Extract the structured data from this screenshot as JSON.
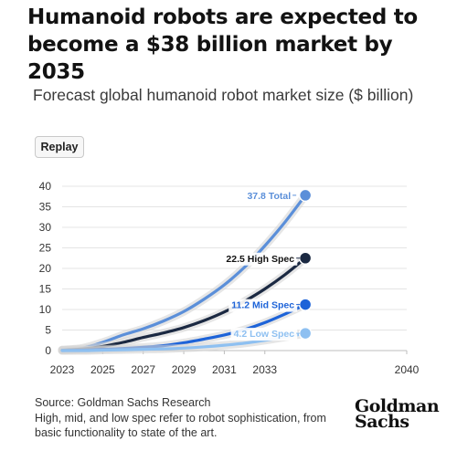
{
  "header": {
    "title": "Humanoid robots are expected to become a $38 billion market by 2035",
    "subtitle": "Forecast global humanoid robot market size ($ billion)"
  },
  "controls": {
    "replay_label": "Replay"
  },
  "footer": {
    "source": "Source: Goldman Sachs Research",
    "note": "High, mid, and low spec refer to robot sophistication, from basic functionality to state of the art.",
    "logo_line1": "Goldman",
    "logo_line2": "Sachs"
  },
  "chart_data": {
    "type": "line",
    "title": "Forecast global humanoid robot market size ($ billion)",
    "xlabel": "",
    "ylabel": "",
    "xlim": [
      2023,
      2040
    ],
    "ylim": [
      0,
      40
    ],
    "x_ticks": [
      2023,
      2025,
      2027,
      2029,
      2031,
      2033,
      2040
    ],
    "y_ticks": [
      0,
      5,
      10,
      15,
      20,
      25,
      30,
      35,
      40
    ],
    "grid": "horizontal",
    "legend": "end-of-line labels",
    "series": [
      {
        "name": "Total",
        "color": "#5b8fd9",
        "label": "37.8 Total",
        "x": [
          2023,
          2024,
          2025,
          2026,
          2027,
          2028,
          2029,
          2030,
          2031,
          2032,
          2033,
          2034,
          2035
        ],
        "values": [
          0.2,
          0.6,
          2.0,
          3.8,
          5.3,
          7.2,
          9.5,
          12.5,
          16.0,
          20.3,
          25.5,
          31.3,
          37.8
        ]
      },
      {
        "name": "High Spec",
        "color": "#1b2942",
        "label": "22.5 High Spec",
        "x": [
          2023,
          2024,
          2025,
          2026,
          2027,
          2028,
          2029,
          2030,
          2031,
          2032,
          2033,
          2034,
          2035
        ],
        "values": [
          0.1,
          0.4,
          1.0,
          2.0,
          3.2,
          4.3,
          5.6,
          7.3,
          9.4,
          12.0,
          15.0,
          18.5,
          22.5
        ]
      },
      {
        "name": "Mid Spec",
        "color": "#1d63d8",
        "label": "11.2 Mid Spec",
        "x": [
          2023,
          2024,
          2025,
          2026,
          2027,
          2028,
          2029,
          2030,
          2031,
          2032,
          2033,
          2034,
          2035
        ],
        "values": [
          0.0,
          0.1,
          0.3,
          0.5,
          0.8,
          1.2,
          1.9,
          2.8,
          3.8,
          5.1,
          6.8,
          8.9,
          11.2
        ]
      },
      {
        "name": "Low Spec",
        "color": "#8ec0f1",
        "label": "4.2 Low Spec",
        "x": [
          2023,
          2024,
          2025,
          2026,
          2027,
          2028,
          2029,
          2030,
          2031,
          2032,
          2033,
          2034,
          2035
        ],
        "values": [
          0.0,
          0.0,
          0.1,
          0.2,
          0.3,
          0.4,
          0.6,
          0.9,
          1.3,
          1.8,
          2.5,
          3.3,
          4.2
        ]
      }
    ]
  }
}
